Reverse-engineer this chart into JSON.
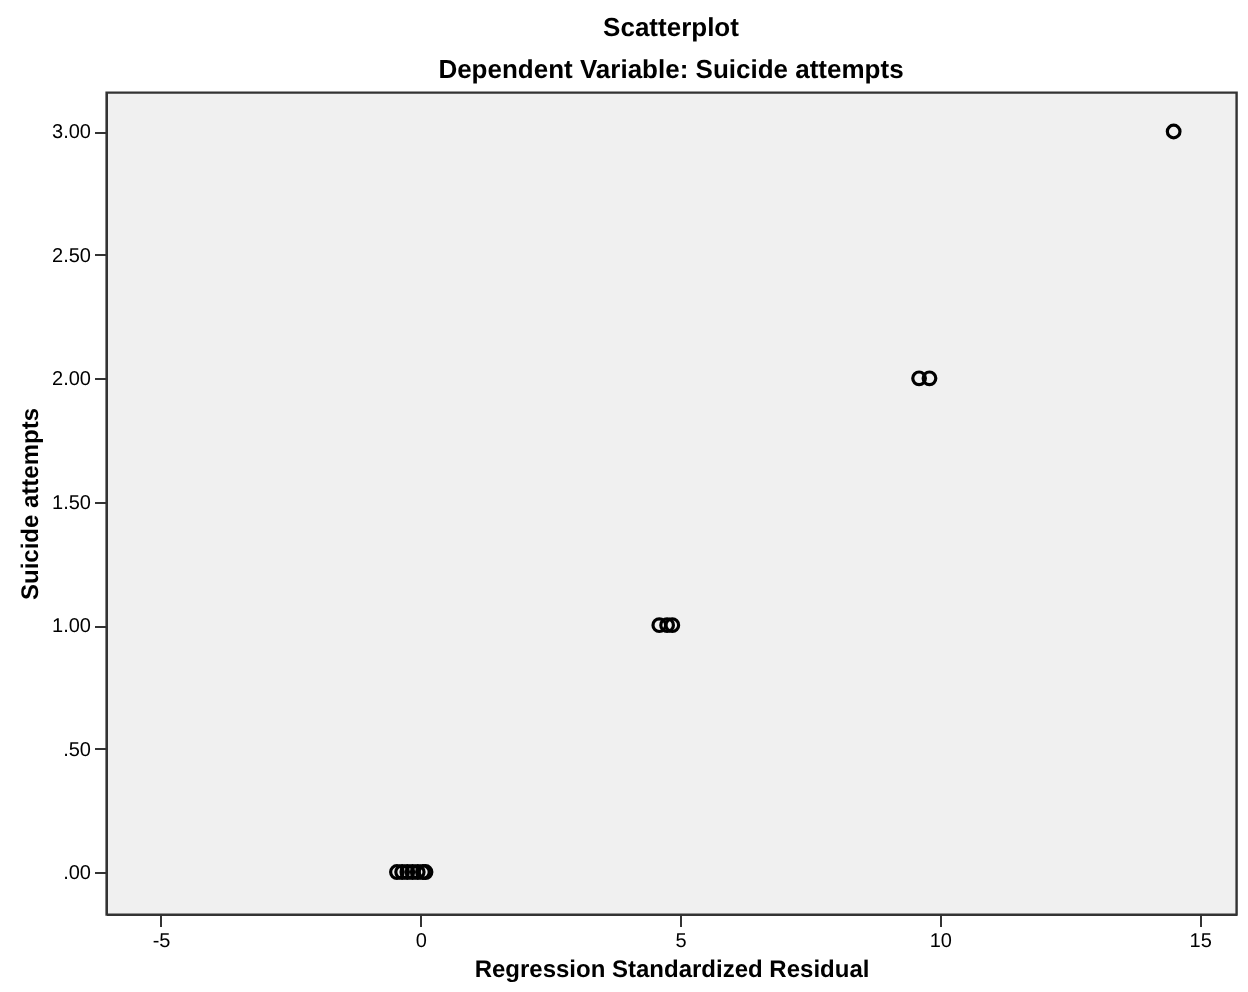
{
  "chart_data": {
    "type": "scatter",
    "title": "Scatterplot",
    "subtitle": "Dependent Variable: Suicide attempts",
    "xlabel": "Regression Standardized Residual",
    "ylabel": "Suicide attempts",
    "x": [
      -0.45,
      -0.35,
      -0.25,
      -0.15,
      -0.05,
      0.05,
      0.1,
      4.6,
      4.75,
      4.85,
      9.6,
      9.8,
      14.5
    ],
    "series": [
      {
        "color": "#000000",
        "values": [
          0,
          0,
          0,
          0,
          0,
          0,
          0,
          1,
          1,
          1,
          2,
          2,
          3
        ]
      }
    ],
    "marker": "circle",
    "grid": false,
    "legend": false,
    "xlim": [
      -6.05,
      15.7
    ],
    "xticks": [
      -5,
      0,
      5,
      10,
      15
    ],
    "ylim": [
      -0.17,
      3.16
    ],
    "yticks": [
      {
        "value": 0,
        "label": ".00"
      },
      {
        "value": 0.5,
        "label": ".50"
      },
      {
        "value": 1,
        "label": "1.00"
      },
      {
        "value": 1.5,
        "label": "1.50"
      },
      {
        "value": 2,
        "label": "2.00"
      },
      {
        "value": 2.5,
        "label": "2.50"
      },
      {
        "value": 3,
        "label": "3.00"
      }
    ]
  }
}
